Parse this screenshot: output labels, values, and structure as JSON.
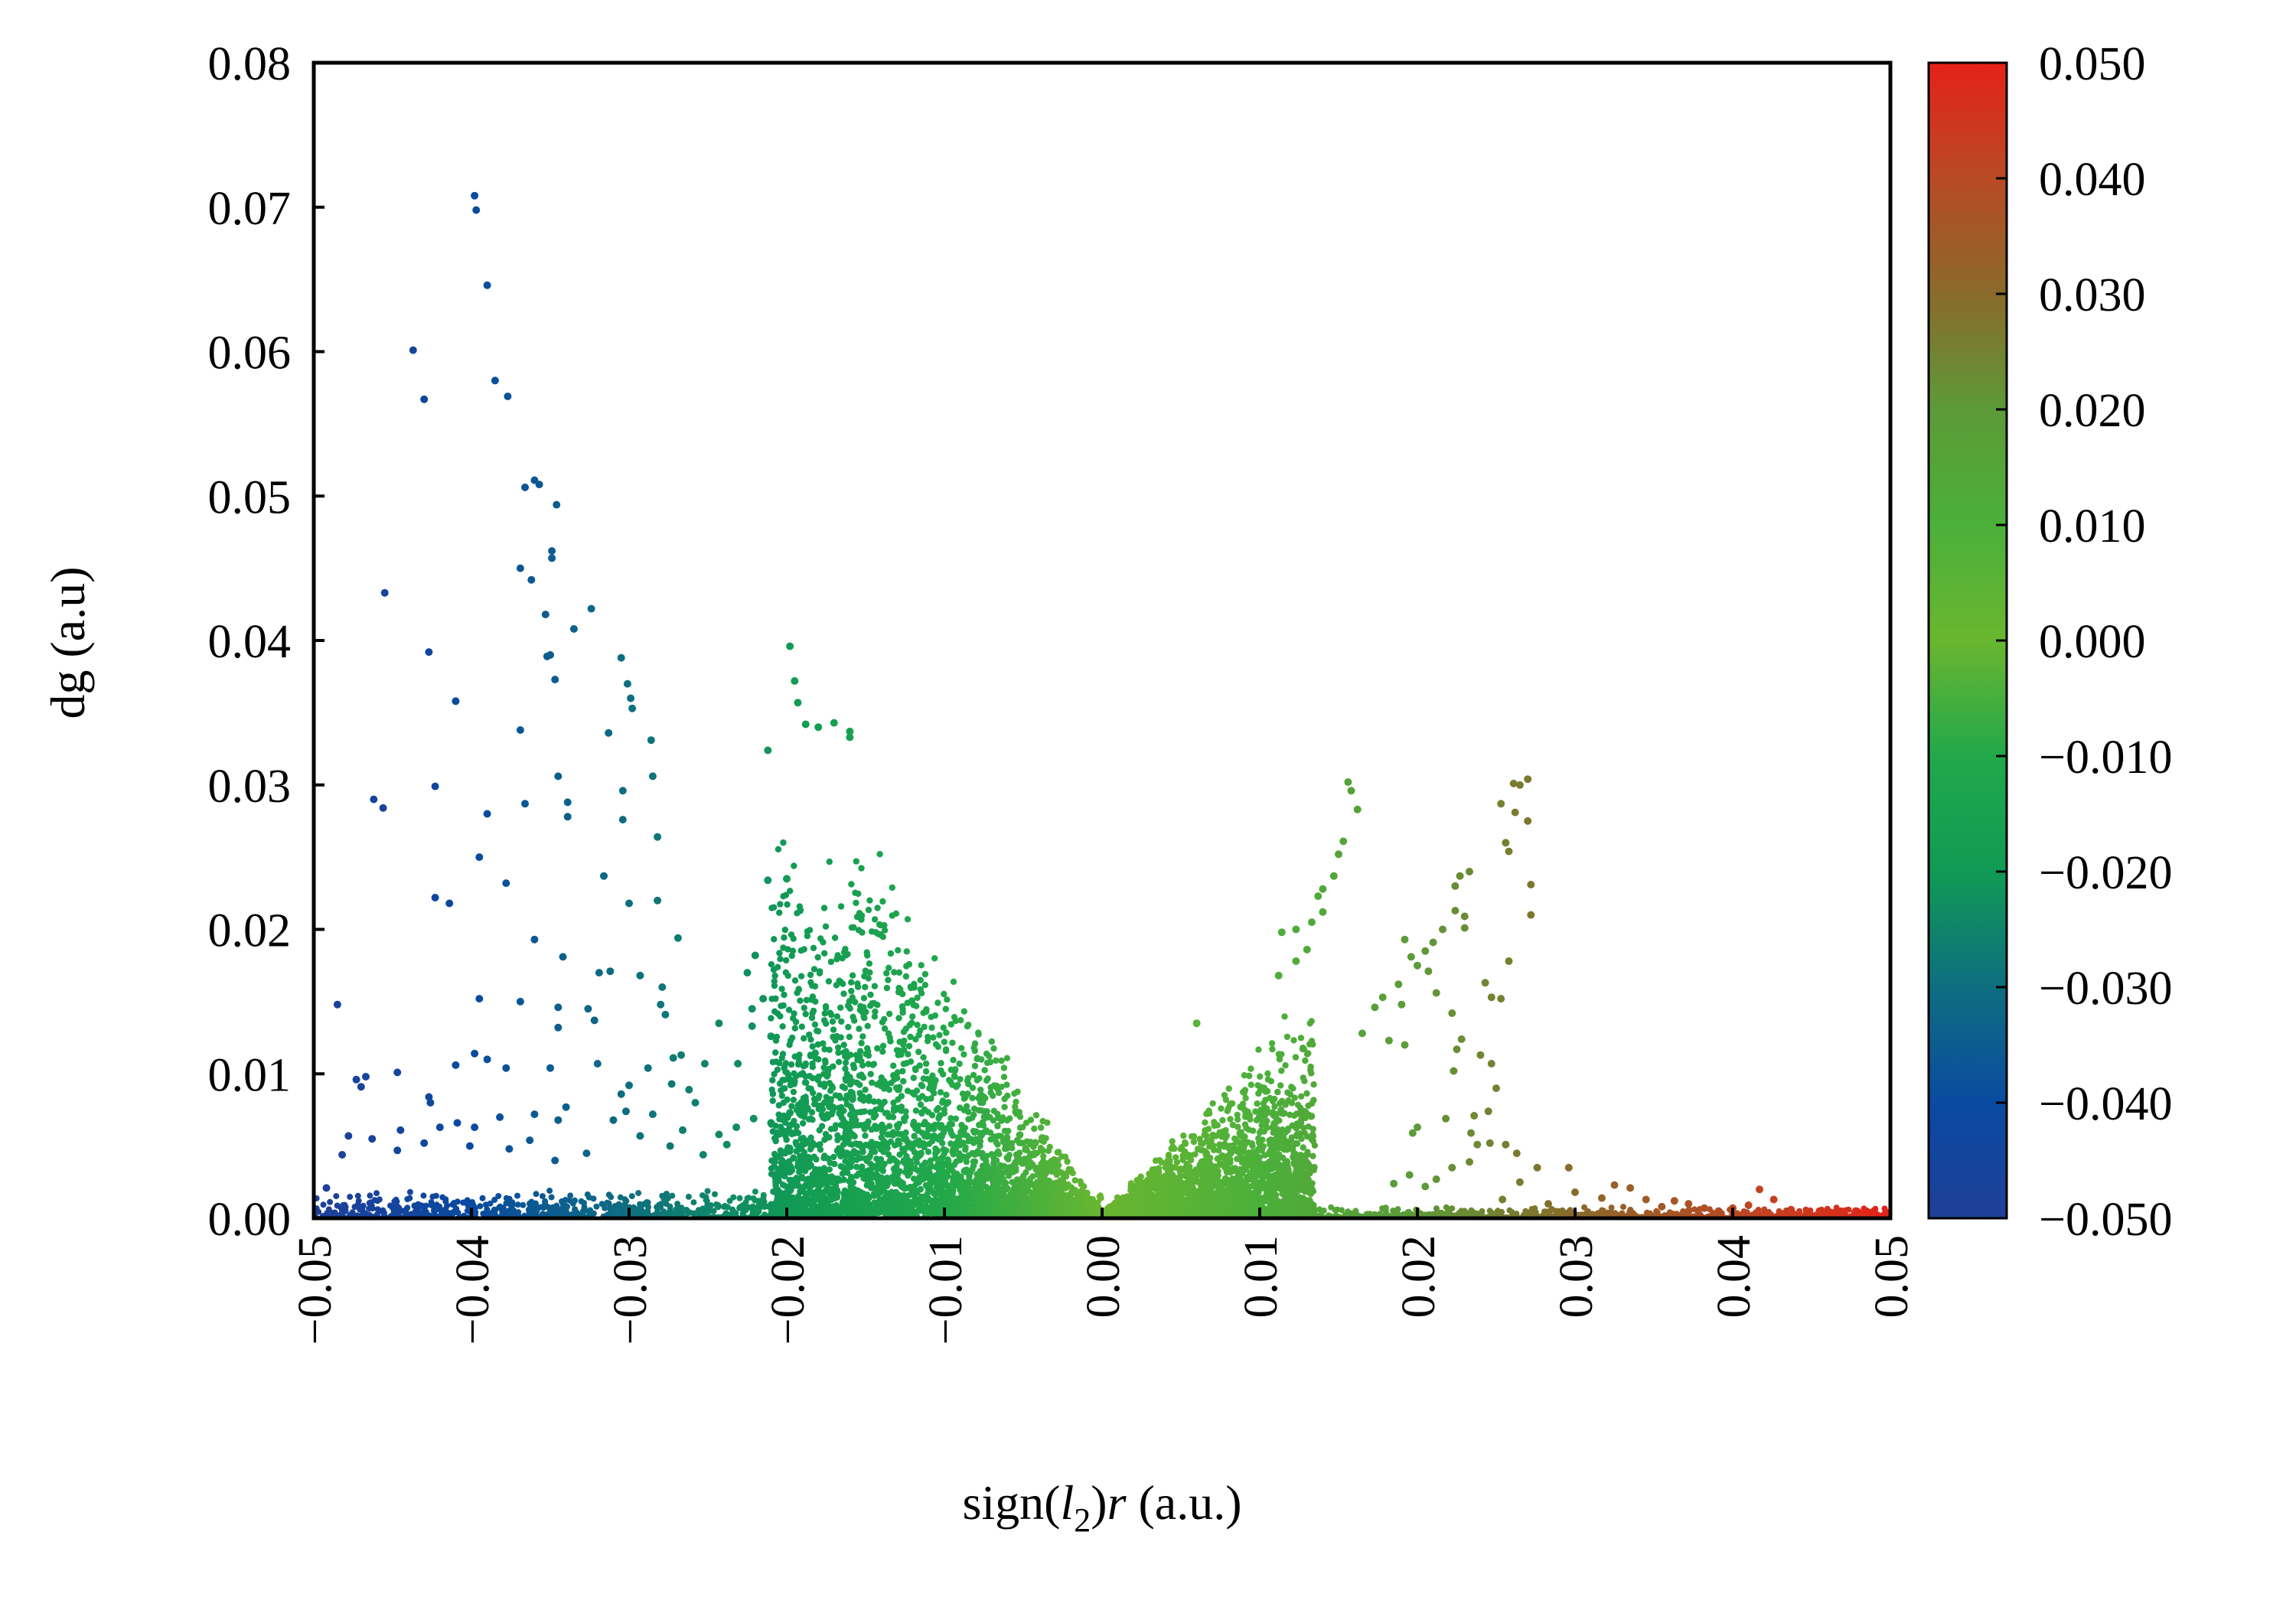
{
  "chart_data": {
    "type": "scatter",
    "title": "",
    "xlabel_parts": [
      "sign(",
      "l",
      "2",
      ")",
      "r",
      " (a.u.)"
    ],
    "ylabel": "dg (a.u)",
    "xlim": [
      -0.05,
      0.05
    ],
    "ylim": [
      0,
      0.08
    ],
    "x_ticks": [
      "−0.05",
      "−0.04",
      "−0.03",
      "−0.02",
      "−0.01",
      "0.00",
      "0.01",
      "0.02",
      "0.03",
      "0.04",
      "0.05"
    ],
    "x_tick_values": [
      -0.05,
      -0.04,
      -0.03,
      -0.02,
      -0.01,
      0.0,
      0.01,
      0.02,
      0.03,
      0.04,
      0.05
    ],
    "y_ticks": [
      "0.00",
      "0.01",
      "0.02",
      "0.03",
      "0.04",
      "0.05",
      "0.06",
      "0.07",
      "0.08"
    ],
    "y_tick_values": [
      0,
      0.01,
      0.02,
      0.03,
      0.04,
      0.05,
      0.06,
      0.07,
      0.08
    ],
    "grid": false,
    "colorbar": {
      "range": [
        -0.05,
        0.05
      ],
      "tick_labels": [
        "0.050",
        "0.040",
        "0.030",
        "0.020",
        "0.010",
        "0.000",
        "−0.010",
        "−0.020",
        "−0.030",
        "−0.040",
        "−0.050"
      ],
      "tick_values": [
        0.05,
        0.04,
        0.03,
        0.02,
        0.01,
        0.0,
        -0.01,
        -0.02,
        -0.03,
        -0.04,
        -0.05
      ],
      "colors": [
        "#1f3f99",
        "#0a4aa0",
        "#0e6e80",
        "#119a55",
        "#22a84a",
        "#6ab630",
        "#4bb03a",
        "#5d9a38",
        "#8a6a2a",
        "#b84a24",
        "#e52218"
      ]
    },
    "points": [
      [
        -0.0398,
        0.0708
      ],
      [
        -0.0397,
        0.0698
      ],
      [
        -0.039,
        0.0646
      ],
      [
        -0.0437,
        0.0601
      ],
      [
        -0.043,
        0.0567
      ],
      [
        -0.0385,
        0.058
      ],
      [
        -0.0377,
        0.0569
      ],
      [
        -0.036,
        0.0511
      ],
      [
        -0.0366,
        0.0506
      ],
      [
        -0.0357,
        0.0508
      ],
      [
        -0.0346,
        0.0494
      ],
      [
        -0.0349,
        0.0462
      ],
      [
        -0.0349,
        0.0457
      ],
      [
        -0.0369,
        0.045
      ],
      [
        -0.0362,
        0.0442
      ],
      [
        -0.0455,
        0.0433
      ],
      [
        -0.0324,
        0.0422
      ],
      [
        -0.0353,
        0.0418
      ],
      [
        -0.0335,
        0.0408
      ],
      [
        -0.0427,
        0.0392
      ],
      [
        -0.0352,
        0.0389
      ],
      [
        -0.035,
        0.039
      ],
      [
        -0.0305,
        0.0388
      ],
      [
        -0.0347,
        0.0373
      ],
      [
        -0.0301,
        0.037
      ],
      [
        -0.0299,
        0.036
      ],
      [
        -0.0298,
        0.0353
      ],
      [
        -0.041,
        0.0358
      ],
      [
        -0.0369,
        0.0338
      ],
      [
        -0.0313,
        0.0336
      ],
      [
        -0.0286,
        0.0331
      ],
      [
        -0.0345,
        0.0306
      ],
      [
        -0.0285,
        0.0306
      ],
      [
        -0.0304,
        0.0296
      ],
      [
        -0.0423,
        0.0299
      ],
      [
        -0.0462,
        0.029
      ],
      [
        -0.0456,
        0.0284
      ],
      [
        -0.0366,
        0.0287
      ],
      [
        -0.0339,
        0.0288
      ],
      [
        -0.0339,
        0.0278
      ],
      [
        -0.039,
        0.028
      ],
      [
        -0.0304,
        0.0276
      ],
      [
        -0.0282,
        0.0264
      ],
      [
        -0.0395,
        0.025
      ],
      [
        -0.0378,
        0.0232
      ],
      [
        -0.0316,
        0.0237
      ],
      [
        -0.0423,
        0.0222
      ],
      [
        -0.0414,
        0.0218
      ],
      [
        -0.03,
        0.0218
      ],
      [
        -0.0282,
        0.022
      ],
      [
        -0.036,
        0.0193
      ],
      [
        -0.0269,
        0.0194
      ],
      [
        -0.0342,
        0.0181
      ],
      [
        -0.0319,
        0.017
      ],
      [
        -0.0312,
        0.0171
      ],
      [
        -0.0293,
        0.0168
      ],
      [
        -0.0279,
        0.016
      ],
      [
        -0.0395,
        0.0152
      ],
      [
        -0.0369,
        0.015
      ],
      [
        -0.0345,
        0.0146
      ],
      [
        -0.0326,
        0.0145
      ],
      [
        -0.0322,
        0.0137
      ],
      [
        -0.0345,
        0.0132
      ],
      [
        -0.028,
        0.0148
      ],
      [
        -0.0277,
        0.0141
      ],
      [
        -0.0485,
        0.0148
      ],
      [
        -0.0398,
        0.0114
      ],
      [
        -0.041,
        0.0106
      ],
      [
        -0.0447,
        0.0101
      ],
      [
        -0.0473,
        0.0096
      ],
      [
        -0.0467,
        0.0098
      ],
      [
        -0.047,
        0.0091
      ],
      [
        -0.0427,
        0.0084
      ],
      [
        -0.0426,
        0.008
      ],
      [
        -0.039,
        0.011
      ],
      [
        -0.0378,
        0.0104
      ],
      [
        -0.035,
        0.0104
      ],
      [
        -0.032,
        0.0107
      ],
      [
        -0.0288,
        0.0104
      ],
      [
        -0.0272,
        0.0111
      ],
      [
        -0.0267,
        0.0113
      ],
      [
        -0.0252,
        0.0107
      ],
      [
        -0.03,
        0.0092
      ],
      [
        -0.0273,
        0.0093
      ],
      [
        -0.0305,
        0.0086
      ],
      [
        -0.0262,
        0.0089
      ],
      [
        -0.0258,
        0.008
      ],
      [
        -0.0285,
        0.0072
      ],
      [
        -0.0302,
        0.0074
      ],
      [
        -0.034,
        0.0077
      ],
      [
        -0.031,
        0.0068
      ],
      [
        -0.0345,
        0.0068
      ],
      [
        -0.036,
        0.0072
      ],
      [
        -0.0382,
        0.007
      ],
      [
        -0.0398,
        0.0063
      ],
      [
        -0.0409,
        0.0066
      ],
      [
        -0.042,
        0.0063
      ],
      [
        -0.0445,
        0.0061
      ],
      [
        -0.0463,
        0.0055
      ],
      [
        -0.0478,
        0.0057
      ],
      [
        -0.0482,
        0.0044
      ],
      [
        -0.0492,
        0.0021
      ],
      [
        -0.0447,
        0.0047
      ],
      [
        -0.043,
        0.0052
      ],
      [
        -0.0401,
        0.005
      ],
      [
        -0.0376,
        0.0048
      ],
      [
        -0.0363,
        0.0054
      ],
      [
        -0.0347,
        0.004
      ],
      [
        -0.0327,
        0.0045
      ],
      [
        -0.0293,
        0.0057
      ],
      [
        -0.0274,
        0.005
      ],
      [
        -0.0266,
        0.0061
      ],
      [
        -0.0243,
        0.0058
      ],
      [
        -0.0232,
        0.0063
      ],
      [
        -0.0221,
        0.0069
      ],
      [
        -0.021,
        0.0066
      ],
      [
        -0.0238,
        0.0051
      ],
      [
        -0.0253,
        0.0044
      ],
      [
        -0.0206,
        0.0059
      ],
      [
        -0.0198,
        0.0073
      ],
      [
        -0.019,
        0.008
      ],
      [
        -0.0198,
        0.0396
      ],
      [
        -0.0195,
        0.0372
      ],
      [
        -0.0193,
        0.0357
      ],
      [
        -0.0188,
        0.0342
      ],
      [
        -0.018,
        0.034
      ],
      [
        -0.017,
        0.0343
      ],
      [
        -0.016,
        0.0337
      ],
      [
        -0.016,
        0.0333
      ],
      [
        -0.0212,
        0.0324
      ],
      [
        -0.02,
        0.0235
      ],
      [
        -0.0212,
        0.0234
      ],
      [
        -0.022,
        0.0182
      ],
      [
        -0.0225,
        0.017
      ],
      [
        -0.0222,
        0.0145
      ],
      [
        -0.0215,
        0.0152
      ],
      [
        -0.0222,
        0.0133
      ],
      [
        -0.0243,
        0.0135
      ],
      [
        -0.0231,
        0.0107
      ],
      [
        -0.021,
        0.0126
      ],
      [
        0.0156,
        0.0302
      ],
      [
        0.0158,
        0.0296
      ],
      [
        0.0162,
        0.0283
      ],
      [
        0.0153,
        0.0261
      ],
      [
        0.015,
        0.0252
      ],
      [
        0.0147,
        0.0237
      ],
      [
        0.014,
        0.0228
      ],
      [
        0.0137,
        0.0223
      ],
      [
        0.014,
        0.0212
      ],
      [
        0.0133,
        0.0205
      ],
      [
        0.0123,
        0.02
      ],
      [
        0.0114,
        0.0198
      ],
      [
        0.013,
        0.0186
      ],
      [
        0.0123,
        0.0178
      ],
      [
        0.0112,
        0.0168
      ],
      [
        0.0261,
        0.0301
      ],
      [
        0.027,
        0.0304
      ],
      [
        0.0265,
        0.03
      ],
      [
        0.0253,
        0.0287
      ],
      [
        0.0262,
        0.0281
      ],
      [
        0.027,
        0.0275
      ],
      [
        0.0258,
        0.0254
      ],
      [
        0.0272,
        0.0231
      ],
      [
        0.0272,
        0.021
      ],
      [
        0.0256,
        0.026
      ],
      [
        0.0233,
        0.024
      ],
      [
        0.0227,
        0.0237
      ],
      [
        0.0224,
        0.023
      ],
      [
        0.0224,
        0.0213
      ],
      [
        0.023,
        0.0209
      ],
      [
        0.023,
        0.0201
      ],
      [
        0.0216,
        0.02
      ],
      [
        0.021,
        0.0191
      ],
      [
        0.0205,
        0.0185
      ],
      [
        0.0192,
        0.0193
      ],
      [
        0.0196,
        0.0181
      ],
      [
        0.0207,
        0.0171
      ],
      [
        0.02,
        0.0175
      ],
      [
        0.0258,
        0.0178
      ],
      [
        0.0243,
        0.0163
      ],
      [
        0.0253,
        0.0152
      ],
      [
        0.0247,
        0.0153
      ],
      [
        0.0222,
        0.0142
      ],
      [
        0.0212,
        0.0156
      ],
      [
        0.019,
        0.0148
      ],
      [
        0.0188,
        0.0162
      ],
      [
        0.0178,
        0.0153
      ],
      [
        0.0173,
        0.0146
      ],
      [
        0.0165,
        0.0128
      ],
      [
        0.0182,
        0.0123
      ],
      [
        0.0192,
        0.012
      ],
      [
        0.0228,
        0.0124
      ],
      [
        0.0225,
        0.0117
      ],
      [
        0.024,
        0.0113
      ],
      [
        0.0223,
        0.0102
      ],
      [
        0.0247,
        0.0107
      ],
      [
        0.025,
        0.009
      ],
      [
        0.0245,
        0.0074
      ],
      [
        0.0236,
        0.0071
      ],
      [
        0.0218,
        0.0069
      ],
      [
        0.02,
        0.0063
      ],
      [
        0.0197,
        0.0059
      ],
      [
        0.0234,
        0.0059
      ],
      [
        0.0238,
        0.0051
      ],
      [
        0.0246,
        0.0052
      ],
      [
        0.0256,
        0.0051
      ],
      [
        0.0263,
        0.0045
      ],
      [
        0.0233,
        0.0039
      ],
      [
        0.0222,
        0.0035
      ],
      [
        0.0212,
        0.0027
      ],
      [
        0.0205,
        0.0022
      ],
      [
        0.0195,
        0.003
      ],
      [
        0.0185,
        0.0024
      ],
      [
        0.0276,
        0.0035
      ],
      [
        0.0265,
        0.0025
      ],
      [
        0.0254,
        0.0013
      ],
      [
        0.0283,
        0.001
      ],
      [
        0.0296,
        0.0035
      ],
      [
        0.03,
        0.0018
      ],
      [
        0.0317,
        0.0014
      ],
      [
        0.0325,
        0.0023
      ],
      [
        0.0335,
        0.0021
      ],
      [
        0.0345,
        0.0013
      ],
      [
        0.0355,
        0.0008
      ],
      [
        0.0363,
        0.0012
      ],
      [
        0.0372,
        0.001
      ],
      [
        0.0382,
        0.0007
      ],
      [
        0.0391,
        0.0005
      ],
      [
        0.04,
        0.0007
      ],
      [
        0.041,
        0.0009
      ],
      [
        0.0417,
        0.002
      ],
      [
        0.0426,
        0.0013
      ],
      [
        0.0437,
        0.0006
      ],
      [
        0.0447,
        0.0004
      ],
      [
        0.0455,
        0.0005
      ],
      [
        0.0465,
        0.0004
      ],
      [
        0.0478,
        0.0005
      ],
      [
        0.0488,
        0.0003
      ],
      [
        0.0496,
        0.0002
      ],
      [
        0.006,
        0.0135
      ]
    ]
  }
}
